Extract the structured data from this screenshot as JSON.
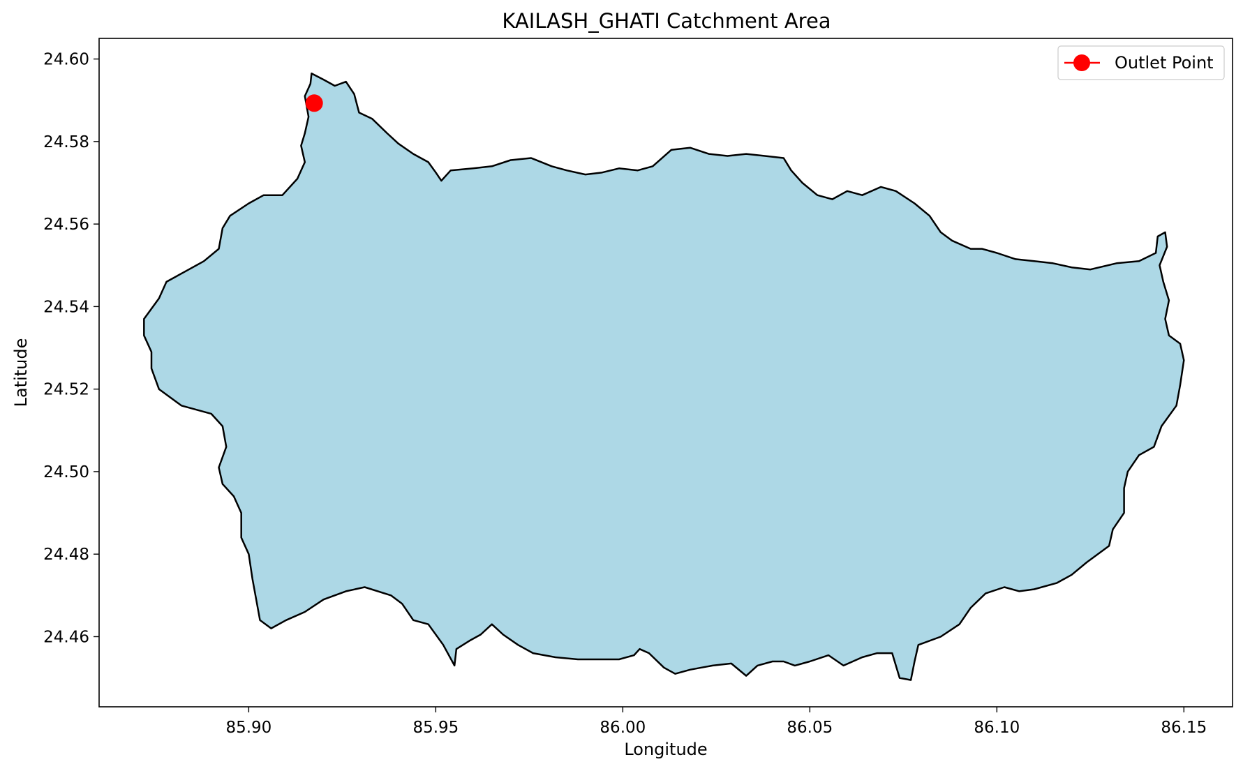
{
  "chart_data": {
    "type": "map",
    "title": "KAILASH_GHATI Catchment Area",
    "xlabel": "Longitude",
    "ylabel": "Latitude",
    "xlim": [
      85.86,
      86.163
    ],
    "ylim": [
      24.443,
      24.605
    ],
    "x_ticks": [
      85.9,
      85.95,
      86.0,
      86.05,
      86.1,
      86.15
    ],
    "x_tick_labels": [
      "85.90",
      "85.95",
      "86.00",
      "86.05",
      "86.10",
      "86.15"
    ],
    "y_ticks": [
      24.46,
      24.48,
      24.5,
      24.52,
      24.54,
      24.56,
      24.58,
      24.6
    ],
    "y_tick_labels": [
      "24.46",
      "24.48",
      "24.50",
      "24.52",
      "24.54",
      "24.56",
      "24.58",
      "24.60"
    ],
    "grid": false,
    "legend": {
      "position": "top-right",
      "entries": [
        "Outlet Point"
      ]
    },
    "catchment": {
      "fill_color": "#add8e6",
      "edge_color": "#000000",
      "boundary": [
        [
          85.9168,
          24.5965
        ],
        [
          85.92,
          24.595
        ],
        [
          85.923,
          24.5935
        ],
        [
          85.926,
          24.5945
        ],
        [
          85.9282,
          24.5915
        ],
        [
          85.9295,
          24.587
        ],
        [
          85.933,
          24.5855
        ],
        [
          85.937,
          24.582
        ],
        [
          85.94,
          24.5795
        ],
        [
          85.944,
          24.577
        ],
        [
          85.948,
          24.575
        ],
        [
          85.95,
          24.5725
        ],
        [
          85.9515,
          24.5705
        ],
        [
          85.954,
          24.573
        ],
        [
          85.96,
          24.5735
        ],
        [
          85.965,
          24.574
        ],
        [
          85.97,
          24.5755
        ],
        [
          85.9755,
          24.576
        ],
        [
          85.981,
          24.574
        ],
        [
          85.985,
          24.573
        ],
        [
          85.99,
          24.572
        ],
        [
          85.9945,
          24.5725
        ],
        [
          85.999,
          24.5735
        ],
        [
          86.004,
          24.573
        ],
        [
          86.008,
          24.574
        ],
        [
          86.013,
          24.578
        ],
        [
          86.018,
          24.5785
        ],
        [
          86.023,
          24.577
        ],
        [
          86.028,
          24.5765
        ],
        [
          86.033,
          24.577
        ],
        [
          86.038,
          24.5765
        ],
        [
          86.043,
          24.576
        ],
        [
          86.045,
          24.573
        ],
        [
          86.048,
          24.57
        ],
        [
          86.052,
          24.567
        ],
        [
          86.056,
          24.566
        ],
        [
          86.06,
          24.568
        ],
        [
          86.064,
          24.567
        ],
        [
          86.069,
          24.569
        ],
        [
          86.073,
          24.568
        ],
        [
          86.078,
          24.565
        ],
        [
          86.082,
          24.562
        ],
        [
          86.085,
          24.558
        ],
        [
          86.088,
          24.556
        ],
        [
          86.093,
          24.554
        ],
        [
          86.096,
          24.554
        ],
        [
          86.1,
          24.553
        ],
        [
          86.105,
          24.5515
        ],
        [
          86.11,
          24.551
        ],
        [
          86.115,
          24.5505
        ],
        [
          86.12,
          24.5495
        ],
        [
          86.125,
          24.549
        ],
        [
          86.132,
          24.5505
        ],
        [
          86.138,
          24.551
        ],
        [
          86.1425,
          24.553
        ],
        [
          86.143,
          24.557
        ],
        [
          86.145,
          24.558
        ],
        [
          86.1455,
          24.5545
        ],
        [
          86.1435,
          24.55
        ],
        [
          86.1445,
          24.546
        ],
        [
          86.146,
          24.5415
        ],
        [
          86.145,
          24.537
        ],
        [
          86.146,
          24.533
        ],
        [
          86.149,
          24.531
        ],
        [
          86.15,
          24.527
        ],
        [
          86.149,
          24.521
        ],
        [
          86.148,
          24.516
        ],
        [
          86.144,
          24.511
        ],
        [
          86.142,
          24.506
        ],
        [
          86.138,
          24.504
        ],
        [
          86.135,
          24.5
        ],
        [
          86.134,
          24.496
        ],
        [
          86.134,
          24.49
        ],
        [
          86.131,
          24.486
        ],
        [
          86.13,
          24.482
        ],
        [
          86.124,
          24.478
        ],
        [
          86.12,
          24.475
        ],
        [
          86.116,
          24.473
        ],
        [
          86.11,
          24.4715
        ],
        [
          86.106,
          24.471
        ],
        [
          86.102,
          24.472
        ],
        [
          86.097,
          24.4705
        ],
        [
          86.093,
          24.467
        ],
        [
          86.09,
          24.463
        ],
        [
          86.085,
          24.46
        ],
        [
          86.079,
          24.458
        ],
        [
          86.078,
          24.454
        ],
        [
          86.077,
          24.4495
        ],
        [
          86.074,
          24.45
        ],
        [
          86.072,
          24.456
        ],
        [
          86.068,
          24.456
        ],
        [
          86.064,
          24.455
        ],
        [
          86.059,
          24.453
        ],
        [
          86.055,
          24.4555
        ],
        [
          86.05,
          24.454
        ],
        [
          86.046,
          24.453
        ],
        [
          86.043,
          24.454
        ],
        [
          86.04,
          24.454
        ],
        [
          86.036,
          24.453
        ],
        [
          86.033,
          24.4505
        ],
        [
          86.029,
          24.4535
        ],
        [
          86.024,
          24.453
        ],
        [
          86.021,
          24.4525
        ],
        [
          86.018,
          24.452
        ],
        [
          86.014,
          24.451
        ],
        [
          86.011,
          24.4525
        ],
        [
          86.007,
          24.456
        ],
        [
          86.0045,
          24.457
        ],
        [
          86.003,
          24.4555
        ],
        [
          85.999,
          24.4545
        ],
        [
          85.994,
          24.4545
        ],
        [
          85.988,
          24.4545
        ],
        [
          85.982,
          24.455
        ],
        [
          85.976,
          24.456
        ],
        [
          85.972,
          24.458
        ],
        [
          85.968,
          24.4605
        ],
        [
          85.965,
          24.463
        ],
        [
          85.962,
          24.4605
        ],
        [
          85.959,
          24.459
        ],
        [
          85.9555,
          24.457
        ],
        [
          85.955,
          24.453
        ],
        [
          85.952,
          24.458
        ],
        [
          85.948,
          24.463
        ],
        [
          85.944,
          24.464
        ],
        [
          85.941,
          24.468
        ],
        [
          85.938,
          24.47
        ],
        [
          85.931,
          24.472
        ],
        [
          85.926,
          24.471
        ],
        [
          85.92,
          24.469
        ],
        [
          85.915,
          24.466
        ],
        [
          85.91,
          24.464
        ],
        [
          85.906,
          24.462
        ],
        [
          85.903,
          24.464
        ],
        [
          85.902,
          24.469
        ],
        [
          85.901,
          24.474
        ],
        [
          85.9,
          24.48
        ],
        [
          85.898,
          24.484
        ],
        [
          85.898,
          24.49
        ],
        [
          85.896,
          24.494
        ],
        [
          85.893,
          24.497
        ],
        [
          85.892,
          24.501
        ],
        [
          85.894,
          24.506
        ],
        [
          85.893,
          24.511
        ],
        [
          85.89,
          24.514
        ],
        [
          85.882,
          24.516
        ],
        [
          85.876,
          24.52
        ],
        [
          85.874,
          24.525
        ],
        [
          85.874,
          24.529
        ],
        [
          85.872,
          24.533
        ],
        [
          85.872,
          24.537
        ],
        [
          85.876,
          24.542
        ],
        [
          85.878,
          24.546
        ],
        [
          85.884,
          24.549
        ],
        [
          85.888,
          24.551
        ],
        [
          85.892,
          24.554
        ],
        [
          85.893,
          24.559
        ],
        [
          85.895,
          24.562
        ],
        [
          85.9,
          24.565
        ],
        [
          85.904,
          24.567
        ],
        [
          85.909,
          24.567
        ],
        [
          85.913,
          24.571
        ],
        [
          85.915,
          24.575
        ],
        [
          85.914,
          24.579
        ],
        [
          85.915,
          24.582
        ],
        [
          85.916,
          24.586
        ],
        [
          85.915,
          24.591
        ],
        [
          85.9165,
          24.594
        ]
      ]
    },
    "outlet_point": {
      "name": "Outlet Point",
      "x": 85.9175,
      "y": 24.5893,
      "color": "#ff0000"
    }
  }
}
